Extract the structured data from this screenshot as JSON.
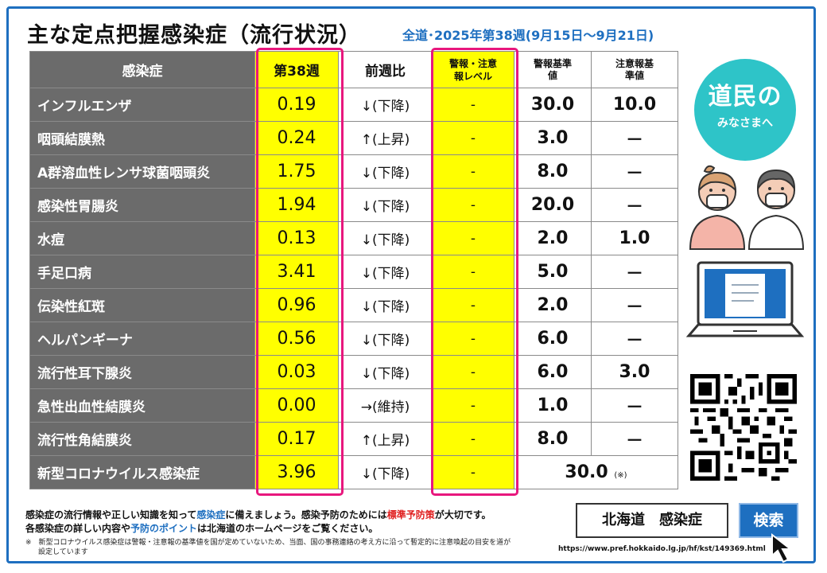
{
  "header": {
    "title": "主な定点把握感染症（流行状況）",
    "subtitle": "全道･2025年第38週(9月15日～9月21日)"
  },
  "table": {
    "columns": {
      "disease": "感染症",
      "week": "第38週",
      "ratio": "前週比",
      "level": "警報・注意報レベル",
      "alert": "警報基準値",
      "caution": "注意報基準値"
    },
    "rows": [
      {
        "disease": "インフルエンザ",
        "week": "0.19",
        "ratio": "↓(下降)",
        "level": "-",
        "alert": "30.0",
        "caution": "10.0"
      },
      {
        "disease": "咽頭結膜熱",
        "week": "0.24",
        "ratio": "↑(上昇)",
        "level": "-",
        "alert": "3.0",
        "caution": "－"
      },
      {
        "disease": "A群溶血性レンサ球菌咽頭炎",
        "week": "1.75",
        "ratio": "↓(下降)",
        "level": "-",
        "alert": "8.0",
        "caution": "－"
      },
      {
        "disease": "感染性胃腸炎",
        "week": "1.94",
        "ratio": "↓(下降)",
        "level": "-",
        "alert": "20.0",
        "caution": "－"
      },
      {
        "disease": "水痘",
        "week": "0.13",
        "ratio": "↓(下降)",
        "level": "-",
        "alert": "2.0",
        "caution": "1.0"
      },
      {
        "disease": "手足口病",
        "week": "3.41",
        "ratio": "↓(下降)",
        "level": "-",
        "alert": "5.0",
        "caution": "－"
      },
      {
        "disease": "伝染性紅斑",
        "week": "0.96",
        "ratio": "↓(下降)",
        "level": "-",
        "alert": "2.0",
        "caution": "－"
      },
      {
        "disease": "ヘルパンギーナ",
        "week": "0.56",
        "ratio": "↓(下降)",
        "level": "-",
        "alert": "6.0",
        "caution": "－"
      },
      {
        "disease": "流行性耳下腺炎",
        "week": "0.03",
        "ratio": "↓(下降)",
        "level": "-",
        "alert": "6.0",
        "caution": "3.0"
      },
      {
        "disease": "急性出血性結膜炎",
        "week": "0.00",
        "ratio": "→(維持)",
        "level": "-",
        "alert": "1.0",
        "caution": "－"
      }
    ],
    "row_keratitis": {
      "disease": "流行性角結膜炎",
      "week": "0.17",
      "ratio": "↑(上昇)",
      "level": "-",
      "alert": "8.0",
      "caution": "－"
    },
    "row_covid": {
      "disease": "新型コロナウイルス感染症",
      "week": "3.96",
      "ratio": "↓(下降)",
      "level": "-",
      "combined": "30.0",
      "mark": "(※)"
    }
  },
  "side": {
    "badge_main": "道民の",
    "badge_sub": "みなさまへ",
    "people_icon": "people-with-masks-icon",
    "laptop_icon": "laptop-icon",
    "qr_icon": "qr-code-icon",
    "skin_color": "#f4cdb7",
    "teal": "#2ec4c8"
  },
  "footer": {
    "l1a": "感染症の流行情報や正しい知識を知って",
    "l1b": "感染症",
    "l1c": "に備えましょう。感染予防のためには",
    "l1d": "標準予防策",
    "l1e": "が大切です。",
    "l2a": "各感染症の詳しい内容や",
    "l2b": "予防のポイント",
    "l2c": "は北海道のホームページをご覧ください。",
    "note1": "※　新型コロナウイルス感染症は警報・注意報の基準値を国が定めていないため、当面、国の事務連絡の考え方に沿って暫定的に注意喚起の目安を道が",
    "note2": "設定しています",
    "search_text": "北海道　感染症",
    "search_button": "検索",
    "url": "https://www.pref.hokkaido.lg.jp/hf/kst/149369.html",
    "accent_blue": "#1e6fc0",
    "highlight_pink": "#e8177d"
  }
}
